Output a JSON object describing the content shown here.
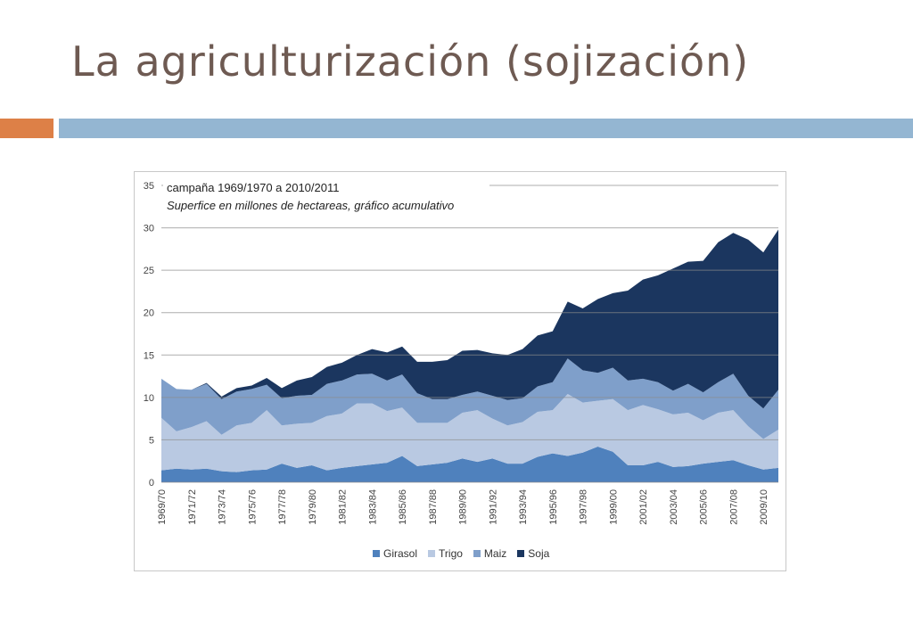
{
  "slide": {
    "title": "La agriculturización (sojización)"
  },
  "colors": {
    "accent_orange": "#dd8047",
    "accent_blue": "#94b6d2",
    "title": "#6e5a52"
  },
  "chart_data": {
    "type": "area",
    "stacked": true,
    "title": "campaña 1969/1970 a 2010/2011",
    "subtitle": "Superfice en millones de hectareas, gráfico acumulativo",
    "xlabel": "",
    "ylabel": "",
    "ylim": [
      0,
      35
    ],
    "yticks": [
      0,
      5,
      10,
      15,
      20,
      25,
      30,
      35
    ],
    "grid": true,
    "legend_position": "bottom",
    "categories": [
      "1969/70",
      "1970/71",
      "1971/72",
      "1972/73",
      "1973/74",
      "1974/75",
      "1975/76",
      "1976/77",
      "1977/78",
      "1978/79",
      "1979/80",
      "1980/81",
      "1981/82",
      "1982/83",
      "1983/84",
      "1984/85",
      "1985/86",
      "1986/87",
      "1987/88",
      "1988/89",
      "1989/90",
      "1990/91",
      "1991/92",
      "1992/93",
      "1993/94",
      "1994/95",
      "1995/96",
      "1996/97",
      "1997/98",
      "1998/99",
      "1999/00",
      "2000/01",
      "2001/02",
      "2002/03",
      "2003/04",
      "2004/05",
      "2005/06",
      "2006/07",
      "2007/08",
      "2008/09",
      "2009/10",
      "2010/11"
    ],
    "tick_labels": [
      "1969/70",
      "1971/72",
      "1973/74",
      "1975/76",
      "1977/78",
      "1979/80",
      "1981/82",
      "1983/84",
      "1985/86",
      "1987/88",
      "1989/90",
      "1991/92",
      "1993/94",
      "1995/96",
      "1997/98",
      "1999/00",
      "2001/02",
      "2003/04",
      "2005/06",
      "2007/08",
      "2009/10"
    ],
    "series": [
      {
        "name": "Girasol",
        "color": "#4f81bd",
        "values": [
          1.4,
          1.6,
          1.5,
          1.6,
          1.3,
          1.2,
          1.4,
          1.5,
          2.2,
          1.7,
          2.0,
          1.4,
          1.7,
          1.9,
          2.1,
          2.3,
          3.1,
          1.9,
          2.1,
          2.3,
          2.8,
          2.4,
          2.8,
          2.2,
          2.2,
          3.0,
          3.4,
          3.1,
          3.5,
          4.2,
          3.6,
          2.0,
          2.0,
          2.4,
          1.8,
          1.9,
          2.2,
          2.4,
          2.6,
          2.0,
          1.5,
          1.7
        ]
      },
      {
        "name": "Trigo",
        "color": "#b9c9e2",
        "values": [
          6.2,
          4.4,
          5.0,
          5.6,
          4.3,
          5.5,
          5.6,
          7.0,
          4.5,
          5.2,
          5.0,
          6.4,
          6.4,
          7.4,
          7.2,
          6.1,
          5.7,
          5.1,
          4.9,
          4.7,
          5.4,
          6.1,
          4.7,
          4.5,
          4.9,
          5.3,
          5.1,
          7.3,
          5.9,
          5.4,
          6.2,
          6.5,
          7.1,
          6.2,
          6.2,
          6.3,
          5.1,
          5.8,
          5.9,
          4.6,
          3.6,
          4.5
        ]
      },
      {
        "name": "Maiz",
        "color": "#7f9fca",
        "values": [
          4.6,
          5.0,
          4.4,
          4.4,
          4.2,
          4.0,
          4.0,
          3.0,
          3.2,
          3.3,
          3.3,
          3.8,
          3.9,
          3.4,
          3.5,
          3.6,
          3.9,
          3.5,
          2.8,
          2.8,
          2.1,
          2.2,
          2.7,
          3.0,
          2.8,
          3.0,
          3.3,
          4.2,
          3.8,
          3.3,
          3.7,
          3.5,
          3.1,
          3.2,
          2.8,
          3.4,
          3.3,
          3.6,
          4.3,
          3.6,
          3.6,
          4.7
        ]
      },
      {
        "name": "Soja",
        "color": "#1b365f",
        "values": [
          0.0,
          0.0,
          0.0,
          0.1,
          0.3,
          0.4,
          0.4,
          0.8,
          1.2,
          1.8,
          2.1,
          2.0,
          2.1,
          2.3,
          2.9,
          3.3,
          3.3,
          3.7,
          4.4,
          4.6,
          5.2,
          4.9,
          5.0,
          5.3,
          5.8,
          6.0,
          6.0,
          6.7,
          7.3,
          8.7,
          8.8,
          10.6,
          11.7,
          12.6,
          14.4,
          14.4,
          15.5,
          16.5,
          16.6,
          18.4,
          18.4,
          18.9
        ]
      }
    ]
  }
}
